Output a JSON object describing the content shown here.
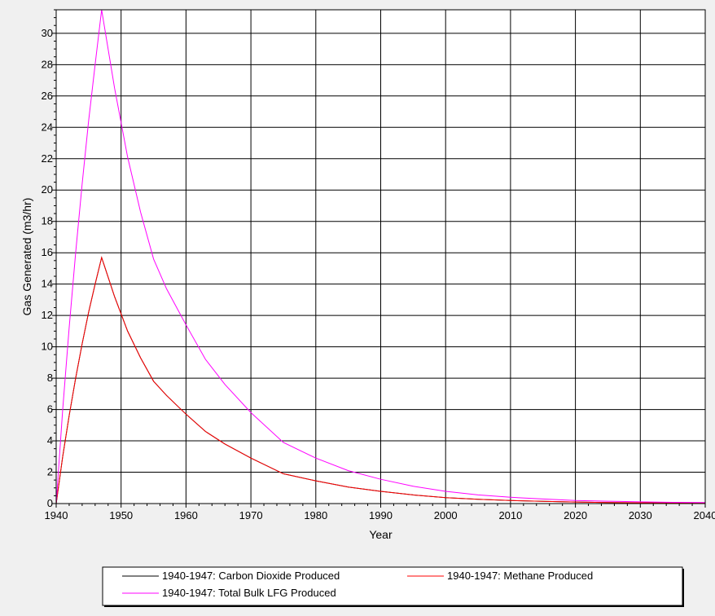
{
  "chart_data": {
    "type": "line",
    "title": "",
    "xlabel": "Year",
    "ylabel": "Gas Generated (m3/hr)",
    "xlim": [
      1940,
      2040
    ],
    "ylim": [
      0,
      31.5
    ],
    "x_ticks": [
      1940,
      1950,
      1960,
      1970,
      1980,
      1990,
      2000,
      2010,
      2020,
      2030,
      2040
    ],
    "y_ticks": [
      0,
      2,
      4,
      6,
      8,
      10,
      12,
      14,
      16,
      18,
      20,
      22,
      24,
      26,
      28,
      30
    ],
    "grid": true,
    "legend_position": "bottom",
    "series": [
      {
        "name": "1940-1947: Carbon Dioxide Produced",
        "color": "#000000",
        "x": [
          1940,
          1941,
          1942,
          1943,
          1944,
          1945,
          1946,
          1947,
          1949,
          1951,
          1953,
          1955,
          1957,
          1960,
          1963,
          1966,
          1970,
          1975,
          1980,
          1985,
          1990,
          1995,
          2000,
          2005,
          2010,
          2015,
          2020,
          2025,
          2030,
          2035,
          2040
        ],
        "y": [
          0,
          3.0,
          5.6,
          8.0,
          10.2,
          12.2,
          14.0,
          15.7,
          13.2,
          11.0,
          9.3,
          7.8,
          6.9,
          5.7,
          4.6,
          3.8,
          2.9,
          1.9,
          1.45,
          1.05,
          0.78,
          0.55,
          0.38,
          0.27,
          0.19,
          0.14,
          0.1,
          0.07,
          0.05,
          0.04,
          0.03
        ]
      },
      {
        "name": "1940-1947: Methane Produced",
        "color": "#ff0000",
        "x": [
          1940,
          1941,
          1942,
          1943,
          1944,
          1945,
          1946,
          1947,
          1949,
          1951,
          1953,
          1955,
          1957,
          1960,
          1963,
          1966,
          1970,
          1975,
          1980,
          1985,
          1990,
          1995,
          2000,
          2005,
          2010,
          2015,
          2020,
          2025,
          2030,
          2035,
          2040
        ],
        "y": [
          0,
          3.0,
          5.6,
          8.0,
          10.2,
          12.2,
          14.0,
          15.7,
          13.2,
          11.0,
          9.3,
          7.8,
          6.9,
          5.7,
          4.6,
          3.8,
          2.9,
          1.9,
          1.45,
          1.05,
          0.78,
          0.55,
          0.38,
          0.27,
          0.19,
          0.14,
          0.1,
          0.07,
          0.05,
          0.04,
          0.03
        ]
      },
      {
        "name": "1940-1947: Total Bulk LFG Produced",
        "color": "#ff00ff",
        "x": [
          1940,
          1941,
          1942,
          1943,
          1944,
          1945,
          1946,
          1947,
          1949,
          1951,
          1953,
          1955,
          1957,
          1960,
          1963,
          1966,
          1970,
          1975,
          1980,
          1985,
          1990,
          1995,
          2000,
          2005,
          2010,
          2015,
          2020,
          2025,
          2030,
          2035,
          2040
        ],
        "y": [
          0,
          6.0,
          11.2,
          16.0,
          20.4,
          24.4,
          28.0,
          31.5,
          26.5,
          22.1,
          18.6,
          15.6,
          13.7,
          11.4,
          9.2,
          7.6,
          5.8,
          3.9,
          2.9,
          2.1,
          1.55,
          1.1,
          0.78,
          0.55,
          0.4,
          0.29,
          0.2,
          0.15,
          0.11,
          0.08,
          0.06
        ]
      }
    ]
  }
}
